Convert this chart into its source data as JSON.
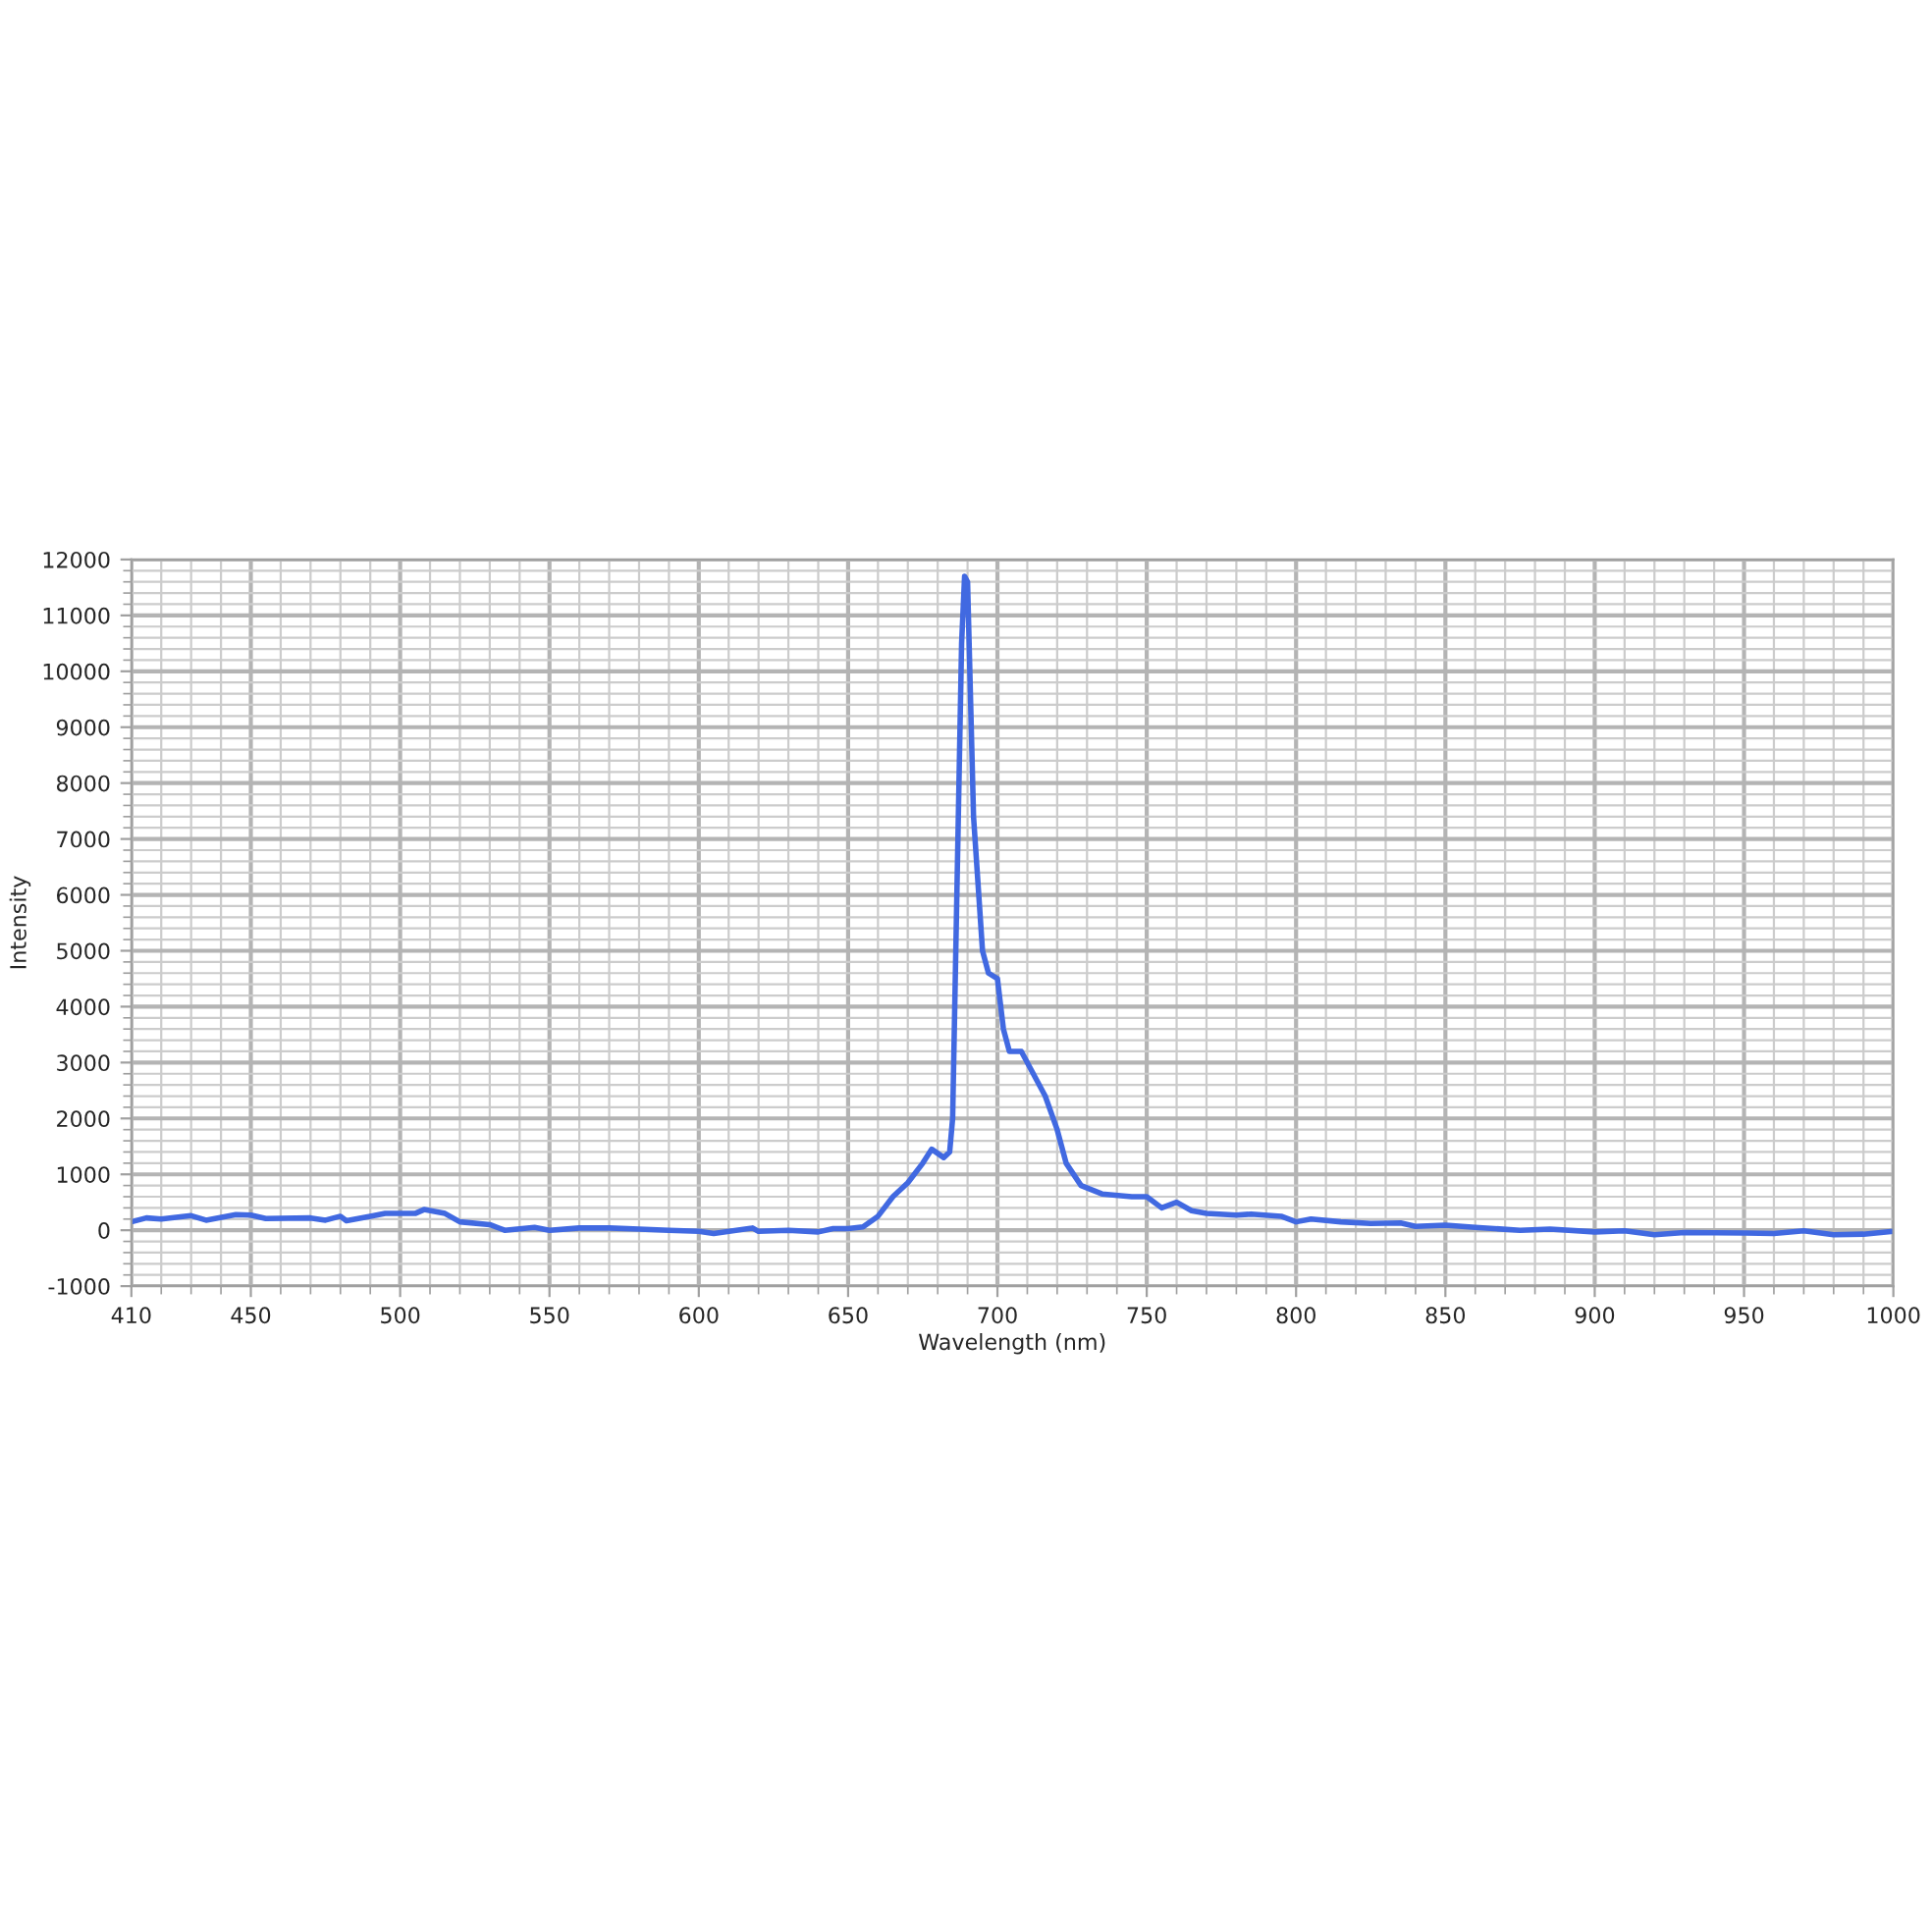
{
  "chart_data": {
    "type": "line",
    "xlabel": "Wavelength (nm)",
    "ylabel": "Intensity",
    "xlim": [
      410,
      1000
    ],
    "xticks": [
      410,
      450,
      500,
      550,
      600,
      650,
      700,
      750,
      800,
      850,
      900,
      950,
      1000
    ],
    "ylim": [
      -1000,
      12000
    ],
    "yticks": [
      -1000,
      0,
      1000,
      2000,
      3000,
      4000,
      5000,
      6000,
      7000,
      8000,
      9000,
      10000,
      11000,
      12000
    ],
    "grid": true,
    "marker": "none",
    "line_style": "solid",
    "series": [
      {
        "color": "#4169e1",
        "x": [
          410,
          415,
          420,
          430,
          435,
          445,
          450,
          455,
          470,
          475,
          480,
          482,
          490,
          495,
          505,
          508,
          515,
          520,
          530,
          535,
          545,
          550,
          560,
          570,
          580,
          590,
          600,
          605,
          618,
          620,
          630,
          640,
          645,
          650,
          655,
          660,
          665,
          670,
          675,
          678,
          682,
          684,
          685,
          688,
          689,
          690,
          692,
          695,
          697,
          700,
          702,
          704,
          708,
          712,
          716,
          720,
          723,
          728,
          735,
          745,
          750,
          755,
          760,
          765,
          770,
          780,
          785,
          795,
          800,
          805,
          815,
          825,
          835,
          840,
          850,
          860,
          875,
          885,
          900,
          910,
          920,
          930,
          950,
          960,
          970,
          980,
          990,
          1000
        ],
        "values": [
          150,
          220,
          200,
          260,
          180,
          280,
          270,
          210,
          220,
          180,
          250,
          170,
          250,
          300,
          300,
          370,
          300,
          150,
          100,
          0,
          50,
          0,
          40,
          40,
          20,
          0,
          -20,
          -60,
          40,
          -20,
          0,
          -30,
          30,
          30,
          60,
          250,
          600,
          850,
          1200,
          1450,
          1300,
          1400,
          2000,
          10500,
          11700,
          11600,
          7400,
          5000,
          4600,
          4500,
          3600,
          3200,
          3200,
          2800,
          2400,
          1800,
          1200,
          800,
          650,
          600,
          600,
          400,
          500,
          350,
          300,
          270,
          290,
          250,
          150,
          200,
          150,
          120,
          130,
          70,
          90,
          50,
          0,
          20,
          -30,
          -10,
          -80,
          -40,
          -50,
          -60,
          -10,
          -80,
          -70,
          -20
        ]
      }
    ]
  }
}
